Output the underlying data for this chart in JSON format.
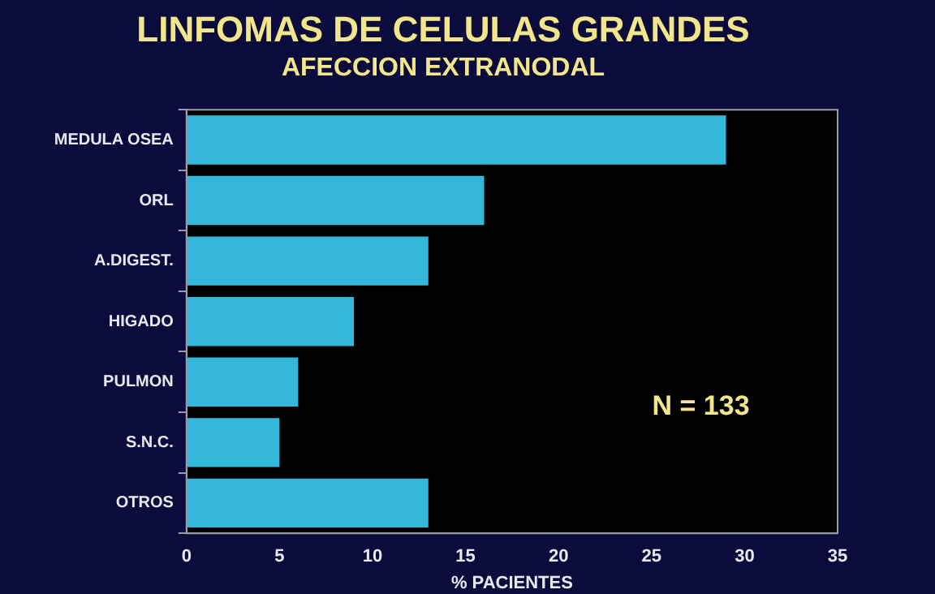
{
  "chart_data": {
    "type": "bar",
    "orientation": "horizontal",
    "title": "LINFOMAS DE CELULAS GRANDES",
    "subtitle": "AFECCION EXTRANODAL",
    "xlabel": "% PACIENTES",
    "categories": [
      "MEDULA OSEA",
      "ORL",
      "A.DIGEST.",
      "HIGADO",
      "PULMON",
      "S.N.C.",
      "OTROS"
    ],
    "values": [
      29,
      16,
      13,
      9,
      6,
      5,
      13
    ],
    "color": "#33b8dc",
    "xlim": [
      0,
      35
    ],
    "xticks": [
      0,
      5,
      10,
      15,
      20,
      25,
      30,
      35
    ],
    "grid": false,
    "legend": false,
    "annotations": [
      "N = 133"
    ]
  }
}
